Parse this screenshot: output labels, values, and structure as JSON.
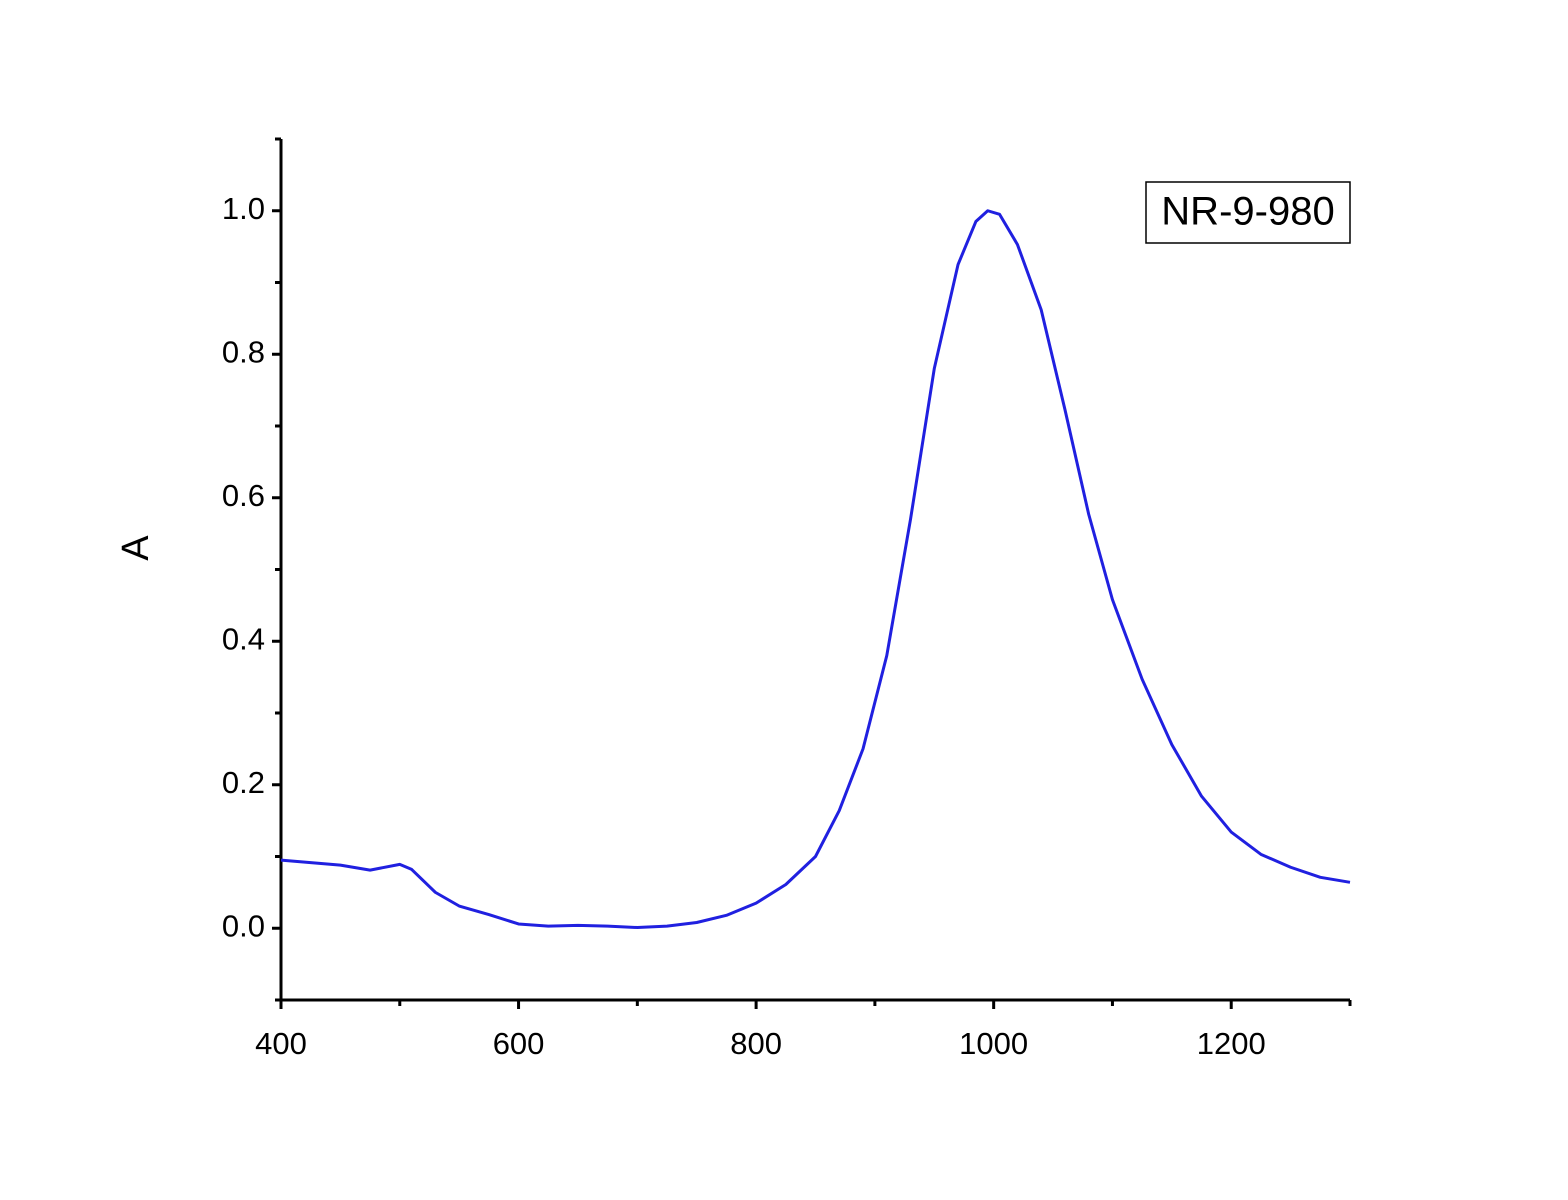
{
  "chart_data": {
    "type": "line",
    "ylabel": "A",
    "annotation": "NR-9-980",
    "x": [
      400,
      450,
      475,
      500,
      510,
      530,
      550,
      575,
      600,
      625,
      650,
      675,
      700,
      725,
      750,
      775,
      800,
      825,
      850,
      870,
      890,
      910,
      930,
      950,
      970,
      985,
      995,
      1005,
      1020,
      1040,
      1060,
      1080,
      1100,
      1125,
      1150,
      1175,
      1200,
      1225,
      1250,
      1275,
      1300
    ],
    "series": [
      {
        "color": "#2020e0",
        "values": [
          0.095,
          0.088,
          0.081,
          0.089,
          0.082,
          0.05,
          0.031,
          0.019,
          0.006,
          0.003,
          0.004,
          0.003,
          0.001,
          0.003,
          0.008,
          0.018,
          0.035,
          0.061,
          0.1,
          0.164,
          0.25,
          0.38,
          0.57,
          0.78,
          0.925,
          0.985,
          1.0,
          0.995,
          0.953,
          0.862,
          0.723,
          0.577,
          0.458,
          0.347,
          0.256,
          0.184,
          0.134,
          0.103,
          0.085,
          0.071,
          0.064
        ]
      }
    ],
    "xlim": [
      400,
      1300
    ],
    "xticks": [
      400,
      600,
      800,
      1000,
      1200
    ],
    "xminorticks": [
      500,
      700,
      900,
      1100,
      1300
    ],
    "ylim": [
      -0.1,
      1.1
    ],
    "yticks": [
      {
        "value": 0,
        "label": "0.0"
      },
      0.2,
      0.4,
      0.6,
      0.8,
      {
        "value": 1,
        "label": "1.0"
      }
    ],
    "yminorticks": [
      -0.1,
      0.1,
      0.3,
      0.5,
      0.7,
      0.9,
      1.1
    ]
  }
}
